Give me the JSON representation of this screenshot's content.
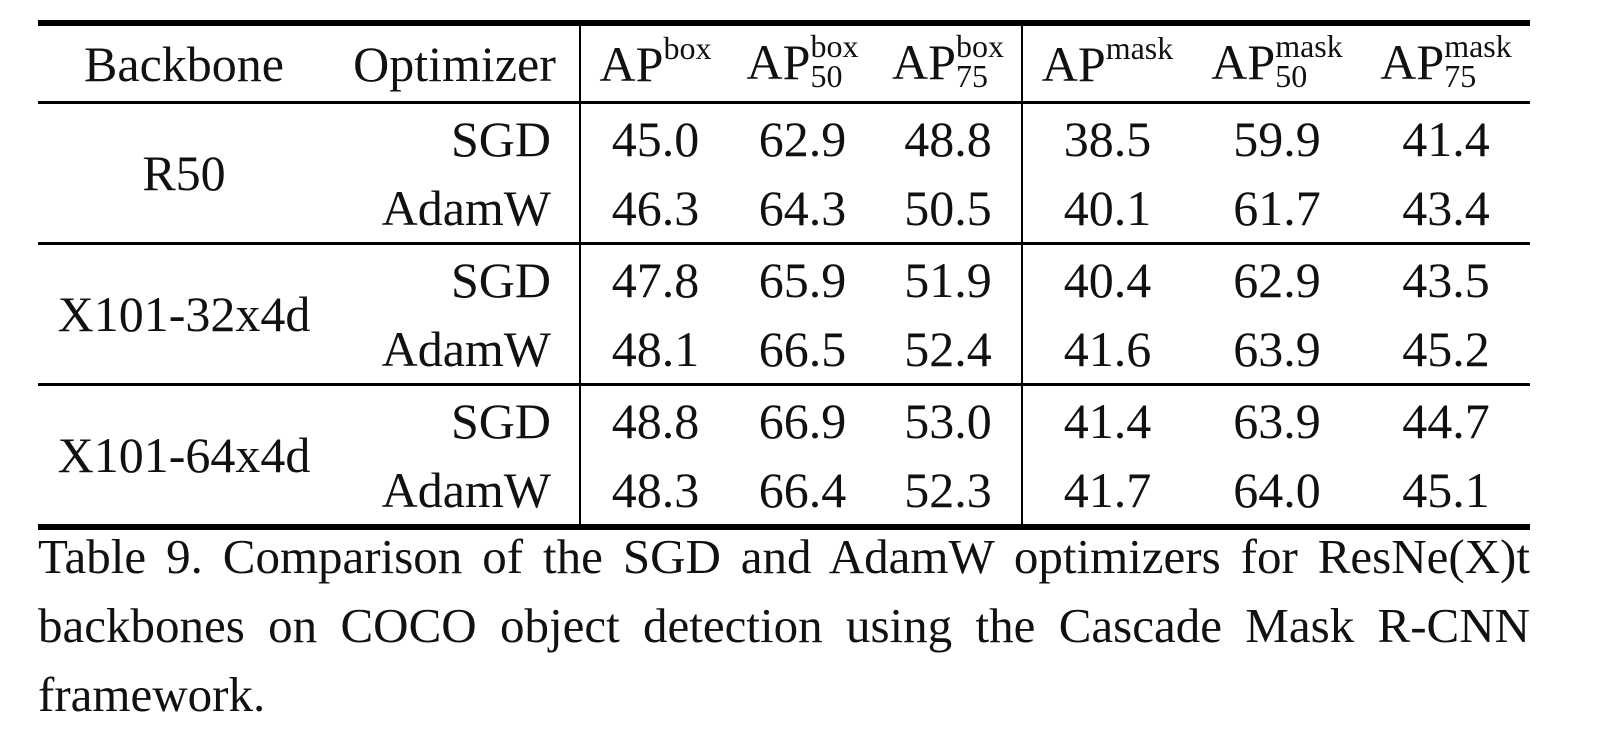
{
  "table": {
    "header": [
      "Backbone",
      "Optimizer"
    ],
    "metrics": [
      {
        "main": "AP",
        "sup": "box"
      },
      {
        "main": "AP",
        "sup": "box",
        "sub": "50"
      },
      {
        "main": "AP",
        "sup": "box",
        "sub": "75"
      },
      {
        "main": "AP",
        "sup": "mask"
      },
      {
        "main": "AP",
        "sup": "mask",
        "sub": "50"
      },
      {
        "main": "AP",
        "sup": "mask",
        "sub": "75"
      }
    ],
    "groups": [
      {
        "backbone": "R50",
        "rows": [
          {
            "optimizer": "SGD",
            "values": [
              "45.0",
              "62.9",
              "48.8",
              "38.5",
              "59.9",
              "41.4"
            ]
          },
          {
            "optimizer": "AdamW",
            "values": [
              "46.3",
              "64.3",
              "50.5",
              "40.1",
              "61.7",
              "43.4"
            ]
          }
        ]
      },
      {
        "backbone": "X101-32x4d",
        "rows": [
          {
            "optimizer": "SGD",
            "values": [
              "47.8",
              "65.9",
              "51.9",
              "40.4",
              "62.9",
              "43.5"
            ]
          },
          {
            "optimizer": "AdamW",
            "values": [
              "48.1",
              "66.5",
              "52.4",
              "41.6",
              "63.9",
              "45.2"
            ]
          }
        ]
      },
      {
        "backbone": "X101-64x4d",
        "rows": [
          {
            "optimizer": "SGD",
            "values": [
              "48.8",
              "66.9",
              "53.0",
              "41.4",
              "63.9",
              "44.7"
            ]
          },
          {
            "optimizer": "AdamW",
            "values": [
              "48.3",
              "66.4",
              "52.3",
              "41.7",
              "64.0",
              "45.1"
            ]
          }
        ]
      }
    ]
  },
  "caption": "Table 9. Comparison of the SGD and AdamW optimizers for ResNe(X)t backbones on COCO object detection using the Cascade Mask R-CNN framework."
}
